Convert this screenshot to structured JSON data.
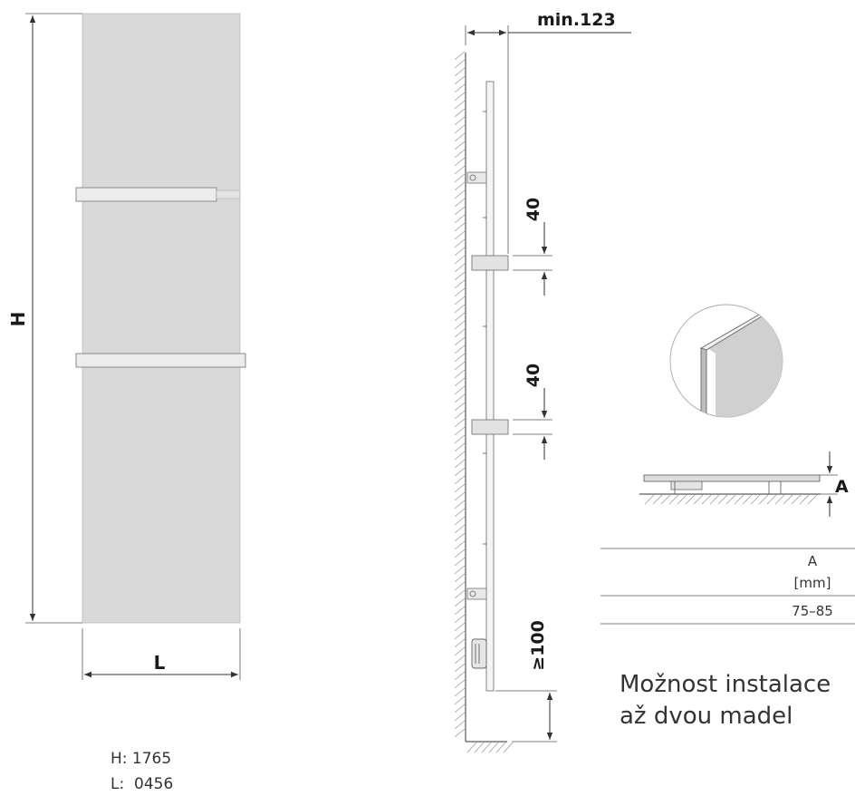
{
  "front_view": {
    "height_label": "H",
    "width_label": "L"
  },
  "side_view": {
    "depth_label": "min.123",
    "spacing_upper": "40",
    "spacing_lower": "40",
    "floor_clearance": "≥100"
  },
  "profile_view": {
    "depth_label": "A"
  },
  "spec_table": {
    "header_1": "A",
    "header_2": "[mm]",
    "value": "75–85"
  },
  "note": {
    "line_1": "Možnost instalace",
    "line_2": "až dvou madel"
  },
  "dimensions": {
    "height": "H: 1765",
    "width": "L:  0456"
  },
  "colors": {
    "panel": "#d9d9d9",
    "line": "#333333"
  }
}
